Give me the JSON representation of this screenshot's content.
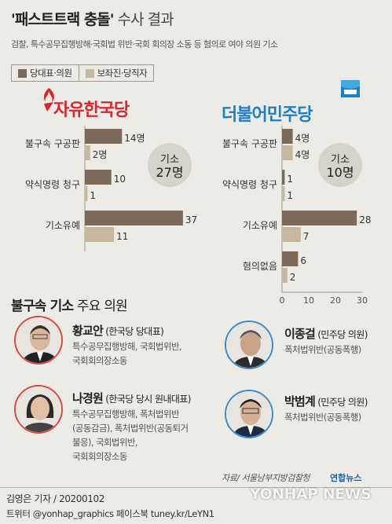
{
  "header": {
    "title_quoted": "'패스트트랙 충돌'",
    "title_rest": " 수사 결과",
    "subtitle": "검찰, 특수공무집행방해·국회법 위반·국회 회의장 소동 등 혐의로 여야 의원 기소"
  },
  "colors": {
    "primary": "#7b6a5c",
    "secondary": "#c5b89f",
    "accent_kr": "#d7282f",
    "accent_dem": "#1a7fc4"
  },
  "chart_data": [
    {
      "type": "bar",
      "party": "자유한국당",
      "categories": [
        "불구속 구공판",
        "약식명령 청구",
        "기소유예"
      ],
      "series": [
        {
          "name": "당대표·의원",
          "values": [
            14,
            10,
            37
          ],
          "labels": [
            "14명",
            "10",
            "37"
          ]
        },
        {
          "name": "보좌진·당직자",
          "values": [
            2,
            1,
            11
          ],
          "labels": [
            "2명",
            "1",
            "11"
          ]
        }
      ],
      "total_label": "기소",
      "total_value": "27명",
      "xlim": [
        0,
        40
      ]
    },
    {
      "type": "bar",
      "party": "더불어민주당",
      "categories": [
        "불구속 구공판",
        "약식명령 청구",
        "기소유예",
        "혐의없음"
      ],
      "series": [
        {
          "name": "당대표·의원",
          "values": [
            4,
            1,
            28,
            6
          ],
          "labels": [
            "4명",
            "1",
            "28",
            "6"
          ]
        },
        {
          "name": "보좌진·당직자",
          "values": [
            4,
            1,
            7,
            2
          ],
          "labels": [
            "4명",
            "1",
            "7",
            "2"
          ]
        }
      ],
      "total_label": "기소",
      "total_value": "10명",
      "xlim": [
        0,
        30
      ],
      "xticks": [
        "0",
        "10",
        "20",
        "30"
      ]
    }
  ],
  "section": {
    "title_bold": "불구속 기소",
    "title_rest": " 주요 의원"
  },
  "people": [
    {
      "name": "황교안",
      "role": " (한국당 당대표)",
      "charges": [
        "특수공무집행방해, 국회법위반,",
        "국회회의장소동"
      ]
    },
    {
      "name": "나경원",
      "role": " (한국당 당시 원내대표)",
      "charges": [
        "특수공무집행방해, 폭처법위반",
        "(공동감금), 폭처법위반(공동퇴거",
        "불응), 국회법위반,",
        "국회회의장소동"
      ]
    },
    {
      "name": "이종걸",
      "role": " (민주당 의원)",
      "charges": [
        "폭처법위반(공동폭행)"
      ]
    },
    {
      "name": "박범계",
      "role": " (민주당 의원)",
      "charges": [
        "폭처법위반(공동폭행)"
      ]
    }
  ],
  "footer": {
    "source": "자료/ 서울남부지방검찰청",
    "credit": "김영은 기자 / 20200102",
    "social": "트위터 @yonhap_graphics  페이스북 tuney.kr/LeYN1",
    "logo": "연합뉴스",
    "watermark": "YONHAP NEWS"
  },
  "icons": [
    "torch-icon",
    "flag-icon",
    "person-photo-icon",
    "yonhap-logo-icon"
  ]
}
